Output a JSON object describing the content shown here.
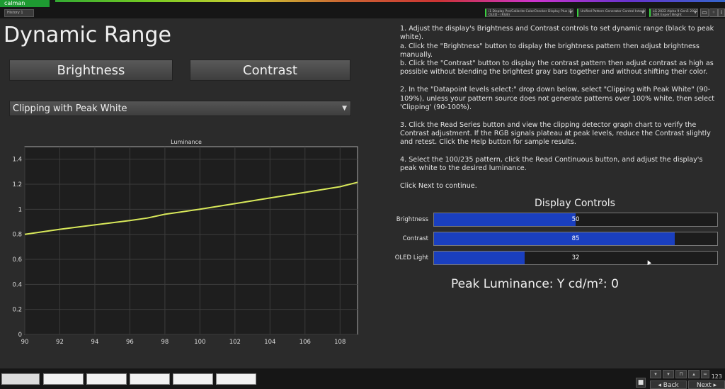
{
  "app": {
    "logo": "calman",
    "tab": "History 1"
  },
  "devices": [
    {
      "line1": "i1 Display Pro/Calibrite ColorChecker Display Plus (Retail)",
      "line2": "OLED - (RGB)"
    },
    {
      "line1": "Unified Pattern Generator Control Interface",
      "line2": ""
    },
    {
      "line1": "LG 2022 Alpha 9 Gen5 2022",
      "line2": "SDR Expert Bright"
    }
  ],
  "page_title": "Dynamic Range",
  "buttons": {
    "brightness": "Brightness",
    "contrast": "Contrast"
  },
  "datapoint_dropdown": {
    "selected": "Clipping with Peak White"
  },
  "instructions": [
    "1. Adjust the display's Brightness and Contrast controls to set dynamic range (black to peak white).",
    "a. Click the \"Brightness\" button to display the brightness pattern then adjust brightness manually.",
    "b. Click the \"Contrast\" button to display the contrast pattern then adjust contrast as high as possible without blending the brightest gray bars together and without shifting their color.",
    "2. In the \"Datapoint levels select:\" drop down below, select \"Clipping with Peak White\" (90-109%), unless your pattern source does not generate patterns over 100% white, then select 'Clipping' (90-100%).",
    "3. Click the Read Series button and view the clipping detector graph chart to verify the Contrast adjustment. If the RGB signals plateau at peak levels, reduce the Contrast slightly and retest. Click the Help button for sample results.",
    "4. Select the 100/235 pattern, click the Read Continuous button, and adjust the display's peak white to the desired luminance.",
    "Click Next to continue."
  ],
  "display_controls": {
    "title": "Display Controls",
    "items": [
      {
        "label": "Brightness",
        "value": "50",
        "fraction": 0.5
      },
      {
        "label": "Contrast",
        "value": "85",
        "fraction": 0.85
      },
      {
        "label": "OLED Light",
        "value": "32",
        "fraction": 0.32
      }
    ]
  },
  "peak_luminance": "Peak Luminance:  Y cd/m²: 0",
  "bottom": {
    "back": "Back",
    "next": "Next",
    "page": "123"
  },
  "colors": {
    "line": "#d8e85a",
    "fill": "#1a3fbf",
    "accent": "#39d23f"
  },
  "chart_data": {
    "type": "line",
    "title": "Luminance",
    "xlim": [
      90,
      109
    ],
    "ylim": [
      0,
      1.5
    ],
    "xticks": [
      90,
      92,
      94,
      96,
      98,
      100,
      102,
      104,
      106,
      108
    ],
    "yticks": [
      0,
      0.2,
      0.4,
      0.6,
      0.8,
      1,
      1.2,
      1.4
    ],
    "series": [
      {
        "x": [
          90,
          92,
          94,
          96,
          97,
          98,
          100,
          102,
          104,
          106,
          108,
          109
        ],
        "y": [
          0.8,
          0.84,
          0.875,
          0.91,
          0.93,
          0.96,
          1.0,
          1.045,
          1.09,
          1.135,
          1.18,
          1.215
        ]
      }
    ],
    "grid": true
  }
}
